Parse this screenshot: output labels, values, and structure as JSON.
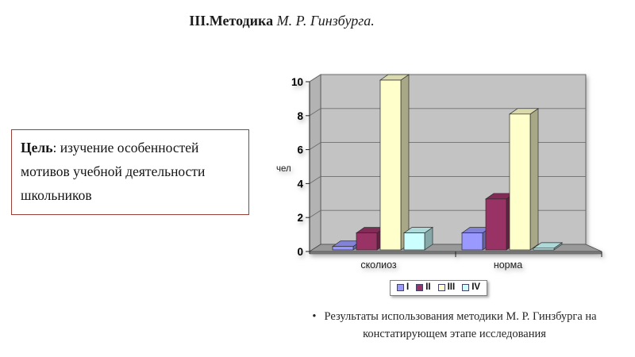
{
  "slide": {
    "title": {
      "topic": "III.Методика",
      "author": " М. Р. Гинзбурга."
    },
    "goal_box": {
      "label": "Цель",
      "text": ": изучение особенностей мотивов учебной деятельности школьников",
      "border_color": "#9b4038"
    },
    "bullet": {
      "marker": "•",
      "lines": [
        "Результаты использования методики М. Р. Гинзбурга на",
        "констатирующем этапе исследования"
      ]
    }
  },
  "chart_data": {
    "type": "bar",
    "subtype": "3d-column",
    "title": "",
    "categories": [
      "сколиоз",
      "норма"
    ],
    "series": [
      {
        "name": "I",
        "color": "#9999FF",
        "values": [
          0.2,
          1
        ]
      },
      {
        "name": "II",
        "color": "#993366",
        "values": [
          1,
          3
        ]
      },
      {
        "name": "III",
        "color": "#FFFFCC",
        "values": [
          10,
          8
        ]
      },
      {
        "name": "IV",
        "color": "#CCFFFF",
        "values": [
          1,
          0.1
        ]
      }
    ],
    "xlabel": "",
    "ylabel": "чел",
    "yticks": [
      0,
      2,
      4,
      6,
      8,
      10
    ],
    "ylim": [
      0,
      10
    ],
    "grid": true,
    "legend_position": "bottom",
    "legend_labels": [
      "I",
      "II",
      "III",
      "IV"
    ],
    "wall_color": "#c3c3c3",
    "floor_color": "#999999"
  }
}
